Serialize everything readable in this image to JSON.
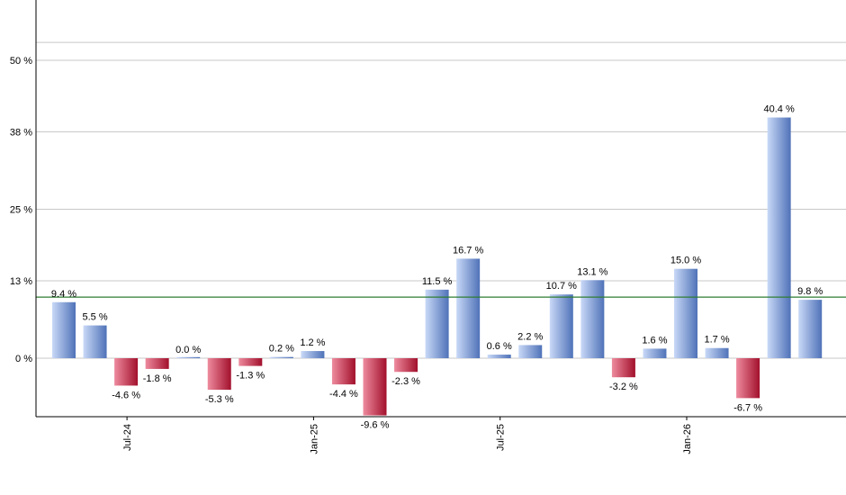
{
  "chart_data": {
    "type": "bar",
    "title": "",
    "xlabel": "",
    "ylabel": "",
    "ylim": [
      -10,
      60
    ],
    "yticks": [
      0,
      13,
      25,
      38,
      50
    ],
    "ytick_labels": [
      "0 %",
      "13 %",
      "25 %",
      "38 %",
      "50 %"
    ],
    "grid": true,
    "legend": "none",
    "reference_line": 10.25,
    "xtick_labels": [
      {
        "label": "Jul-24",
        "index": 2
      },
      {
        "label": "Jan-25",
        "index": 8
      },
      {
        "label": "Jul-25",
        "index": 14
      },
      {
        "label": "Jan-26",
        "index": 20
      }
    ],
    "values": [
      9.4,
      5.5,
      -4.6,
      -1.8,
      0.0,
      -5.3,
      -1.3,
      0.2,
      1.2,
      -4.4,
      -9.6,
      -2.3,
      11.5,
      16.7,
      0.6,
      2.2,
      10.7,
      13.1,
      -3.2,
      1.6,
      15.0,
      1.7,
      -6.7,
      40.4,
      9.8
    ],
    "value_labels": [
      "9.4 %",
      "5.5 %",
      "-4.6 %",
      "-1.8 %",
      "0.0 %",
      "-5.3 %",
      "-1.3 %",
      "0.2 %",
      "1.2 %",
      "-4.4 %",
      "-9.6 %",
      "-2.3 %",
      "11.5 %",
      "16.7 %",
      "0.6 %",
      "2.2 %",
      "10.7 %",
      "13.1 %",
      "-3.2 %",
      "1.6 %",
      "15.0 %",
      "1.7 %",
      "-6.7 %",
      "40.4 %",
      "9.8 %"
    ],
    "colors": {
      "positive_light": "#c9d9f7",
      "positive_dark": "#4f72b8",
      "negative_light": "#ee8b9e",
      "negative_dark": "#a2102c",
      "grid": "#c8c8c8",
      "reference_line": "#2e7d32",
      "axis": "#000000"
    }
  }
}
